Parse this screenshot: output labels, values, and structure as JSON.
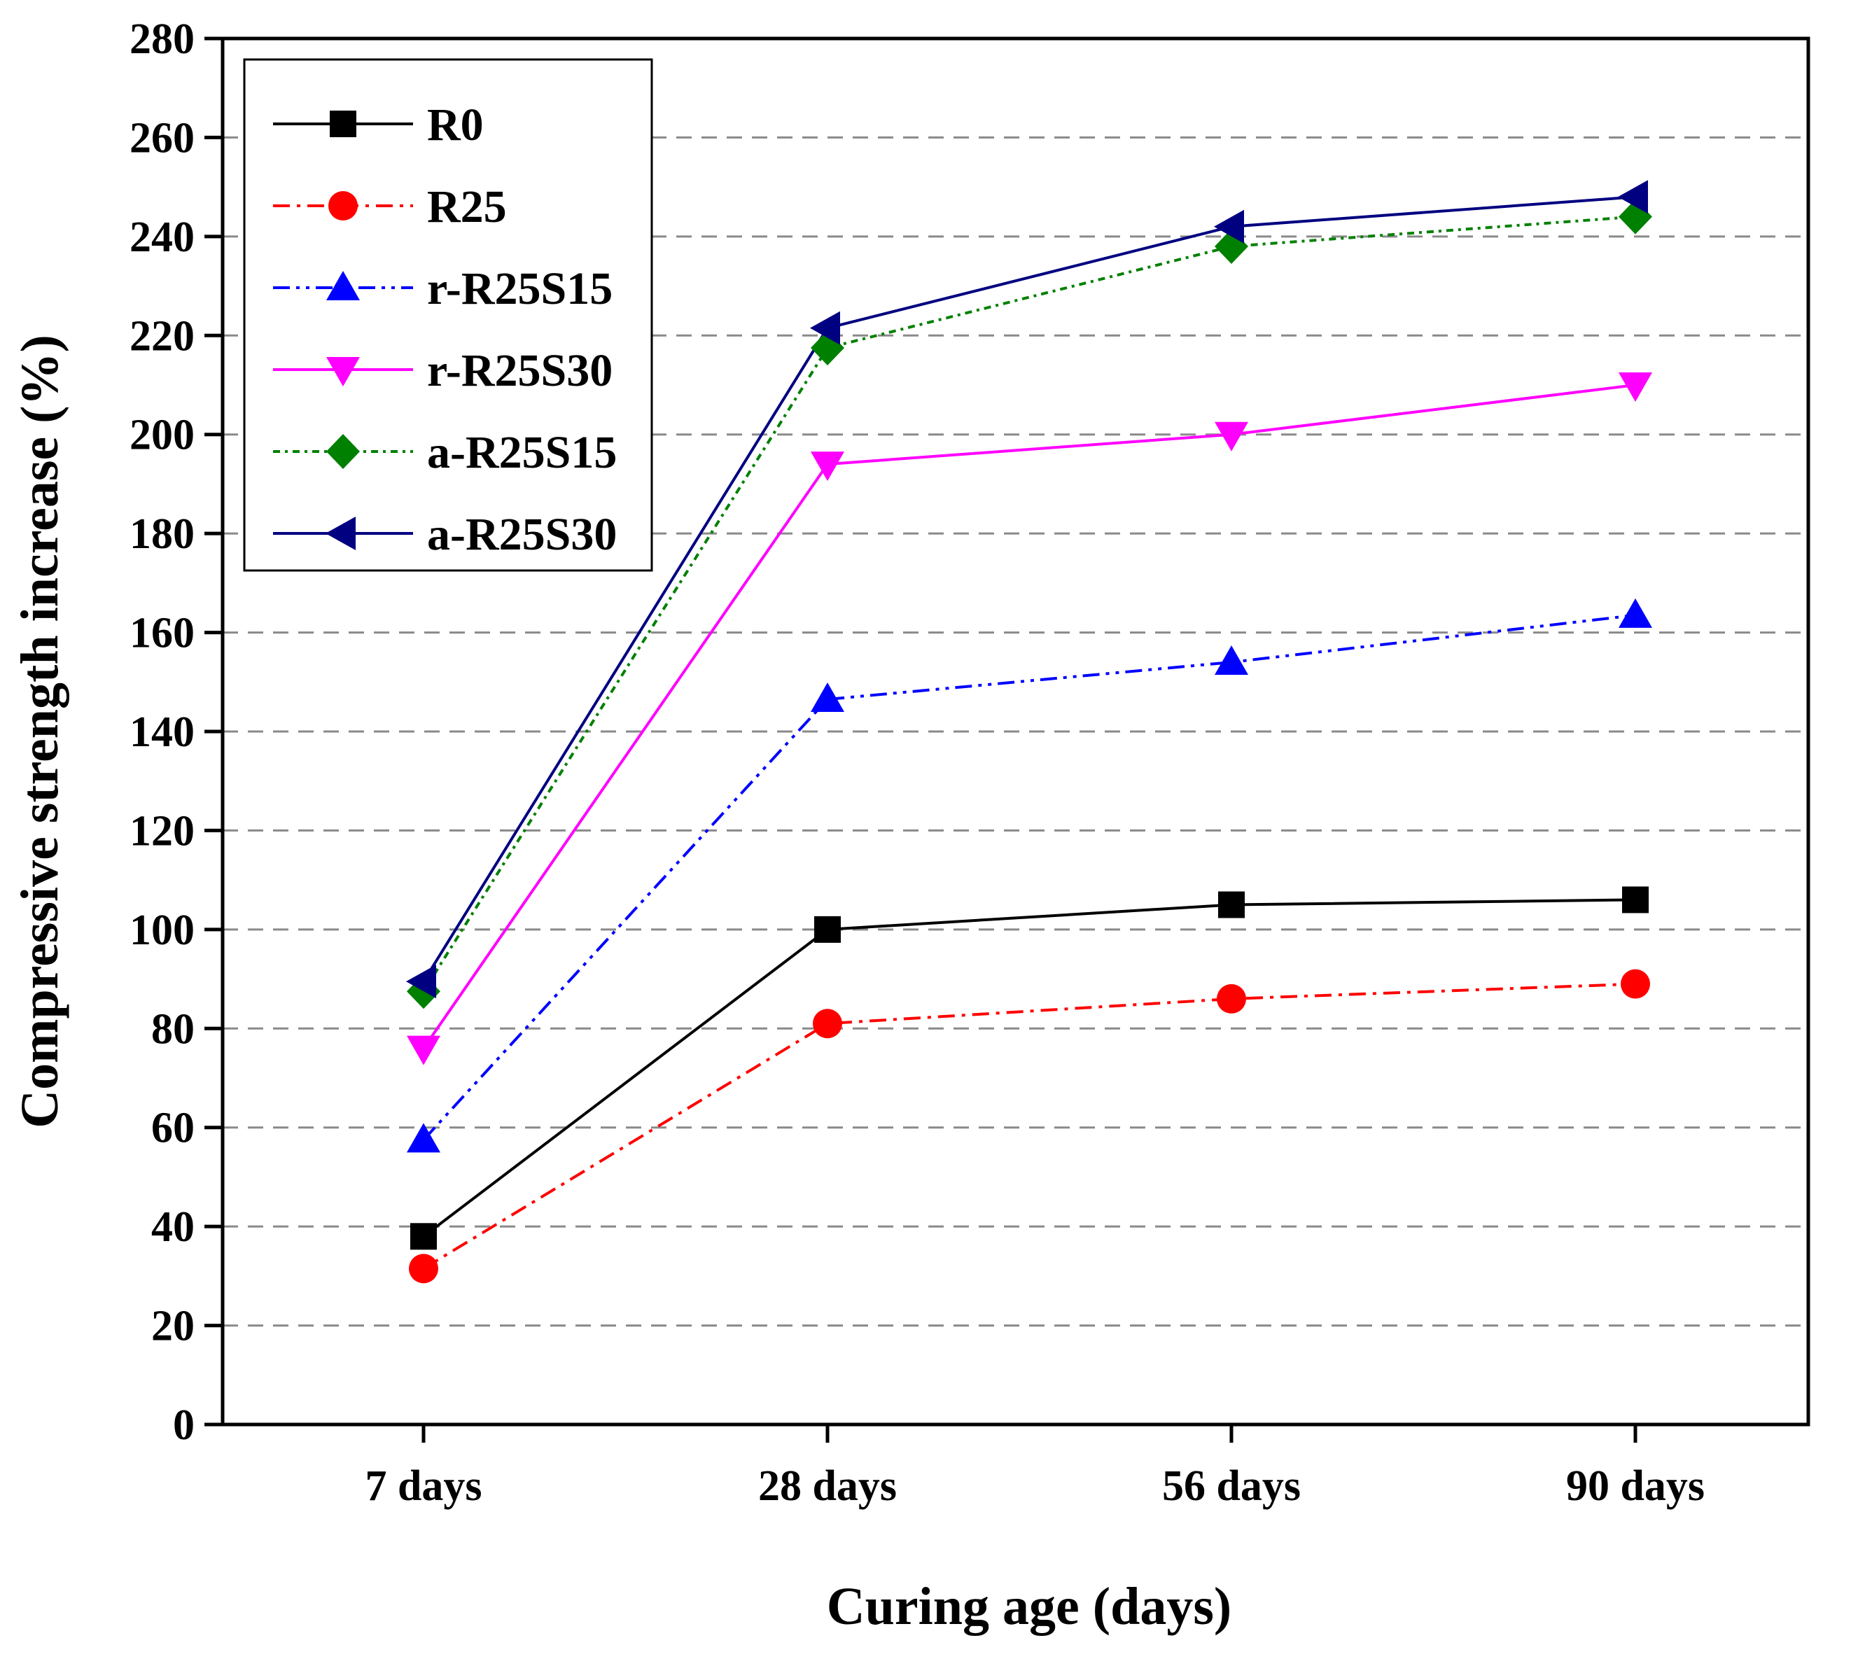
{
  "chart_data": {
    "type": "line",
    "title": "",
    "xlabel": "Curing age (days)",
    "ylabel": "Compressive strength increase (%)",
    "categories": [
      "7 days",
      "28 days",
      "56 days",
      "90 days"
    ],
    "ylim": [
      0,
      280
    ],
    "yticks": [
      0,
      20,
      40,
      60,
      80,
      100,
      120,
      140,
      160,
      180,
      200,
      220,
      240,
      260,
      280
    ],
    "grid": "horizontal-dashed",
    "legend_position": "top-left",
    "series": [
      {
        "name": "R0",
        "values": [
          38,
          100,
          105,
          106
        ],
        "color": "#000000",
        "dash": "solid",
        "marker": "square"
      },
      {
        "name": "R25",
        "values": [
          31.5,
          81,
          86,
          89
        ],
        "color": "#ff0000",
        "dash": "dash-dot",
        "marker": "circle"
      },
      {
        "name": "r-R25S15",
        "values": [
          57.5,
          146.5,
          154,
          163.5
        ],
        "color": "#0000ff",
        "dash": "dash-dot-dot",
        "marker": "triangle-up"
      },
      {
        "name": "r-R25S30",
        "values": [
          76,
          194,
          200,
          210
        ],
        "color": "#ff00ff",
        "dash": "solid",
        "marker": "triangle-down"
      },
      {
        "name": "a-R25S15",
        "values": [
          87.5,
          217.5,
          238,
          244
        ],
        "color": "#008000",
        "dash": "short-dot",
        "marker": "diamond"
      },
      {
        "name": "a-R25S30",
        "values": [
          89.5,
          221.5,
          242,
          248
        ],
        "color": "#000080",
        "dash": "solid",
        "marker": "triangle-left"
      }
    ]
  }
}
